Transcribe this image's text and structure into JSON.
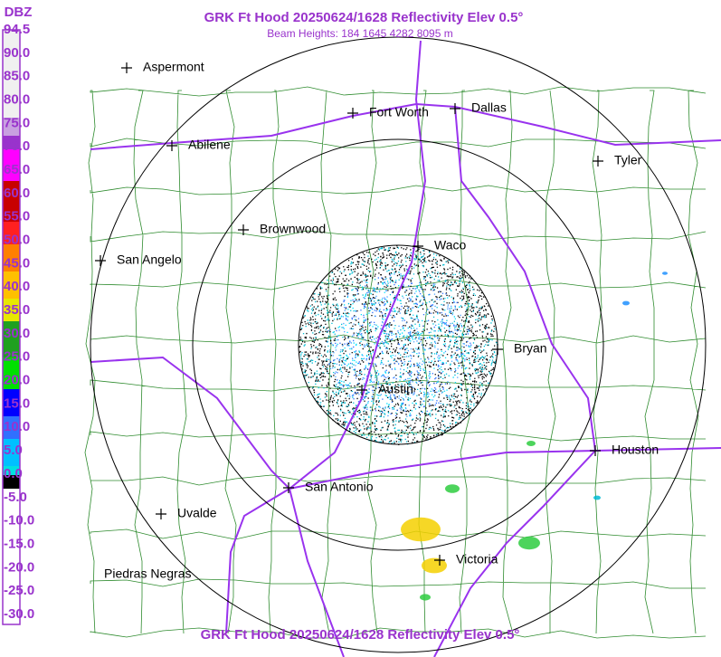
{
  "header": {
    "title": "GRK Ft Hood 20250624/1628 Reflectivity Elev 0.5°",
    "subtitle": "Beam Heights: 184 1645 4282 8095 m"
  },
  "legend": {
    "unit": "DBZ",
    "labels": [
      "94.5",
      "90.0",
      "85.0",
      "80.0",
      "75.0",
      "70.0",
      "65.0",
      "60.0",
      "55.0",
      "50.0",
      "45.0",
      "40.0",
      "35.0",
      "30.0",
      "25.0",
      "20.0",
      "15.0",
      "10.0",
      "5.0",
      "0.0",
      "-5.0",
      "-10.0",
      "-15.0",
      "-20.0",
      "-25.0",
      "-30.0"
    ]
  },
  "cities": [
    "Aspermont",
    "Fort Worth",
    "Dallas",
    "Abilene",
    "Tyler",
    "Brownwood",
    "Waco",
    "San Angelo",
    "Bryan",
    "Austin",
    "Houston",
    "San Antonio",
    "Uvalde",
    "Victoria",
    "Piedras Negras"
  ],
  "footer": {
    "title": "GRK Ft Hood 20250624/1628 Reflectivity Elev 0.5°"
  }
}
